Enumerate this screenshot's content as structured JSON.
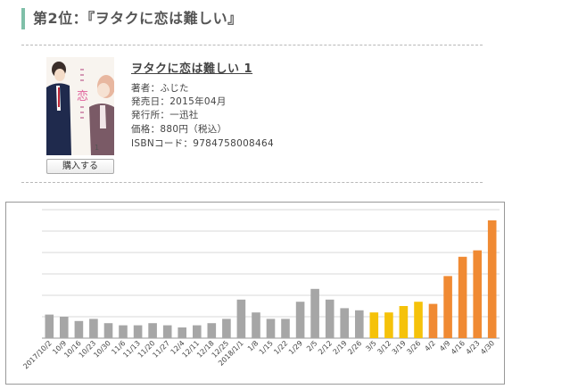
{
  "ranking": {
    "heading": "第2位：『ヲタクに恋は難しい』"
  },
  "book": {
    "title": "ヲタクに恋は難しい 1",
    "author": "著者：ふじた",
    "release_date": "発売日：2015年04月",
    "publisher": "発行所：一迅社",
    "price": "価格：880円（税込）",
    "isbn": "ISBNコード：9784758008464",
    "buy_label": "購入する"
  },
  "colors": {
    "accent_bar": "#7fbfa8",
    "gray_bar": "#a6a6a6",
    "yellow_bar": "#f5c20a",
    "orange_bar": "#f08a33"
  },
  "chart_data": {
    "type": "bar",
    "categories": [
      "2017/10/2",
      "10/9",
      "10/16",
      "10/23",
      "10/30",
      "11/6",
      "11/13",
      "11/20",
      "11/27",
      "12/4",
      "12/11",
      "12/18",
      "12/25",
      "2018/1/1",
      "1/8",
      "1/15",
      "1/22",
      "1/29",
      "2/5",
      "2/12",
      "2/19",
      "2/26",
      "3/5",
      "3/12",
      "3/19",
      "3/26",
      "4/2",
      "4/9",
      "4/16",
      "4/23",
      "4/30"
    ],
    "values": [
      11,
      10,
      8,
      9,
      7,
      6,
      6,
      7,
      6,
      5,
      6,
      7,
      9,
      18,
      12,
      9,
      9,
      17,
      23,
      18,
      14,
      13,
      12,
      12,
      15,
      17,
      16,
      29,
      38,
      41,
      55
    ],
    "bar_colors": [
      "gray",
      "gray",
      "gray",
      "gray",
      "gray",
      "gray",
      "gray",
      "gray",
      "gray",
      "gray",
      "gray",
      "gray",
      "gray",
      "gray",
      "gray",
      "gray",
      "gray",
      "gray",
      "gray",
      "gray",
      "gray",
      "gray",
      "yellow",
      "yellow",
      "yellow",
      "yellow",
      "orange",
      "orange",
      "orange",
      "orange",
      "orange"
    ],
    "ylim": [
      0,
      60
    ],
    "grid": true
  }
}
